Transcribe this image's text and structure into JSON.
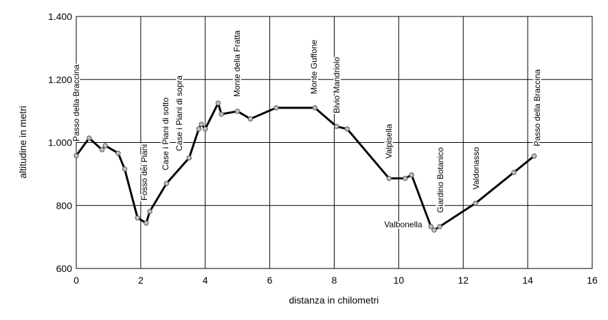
{
  "chart_data": {
    "type": "line",
    "x_label": "distanza in chilometri",
    "y_label": "altitudine in metri",
    "x": [
      0,
      0.4,
      0.8,
      0.9,
      1.3,
      1.5,
      1.9,
      2.17,
      2.28,
      2.8,
      3.5,
      3.8,
      3.88,
      4.0,
      4.4,
      4.5,
      5.0,
      5.4,
      6.2,
      7.4,
      8.07,
      8.4,
      9.7,
      10.2,
      10.4,
      11.0,
      11.1,
      11.27,
      12.38,
      13.57,
      14.2
    ],
    "series": [
      {
        "color": "#000000",
        "marker_color": "#c0c0c0",
        "values": [
          958,
          1014,
          977,
          990,
          966,
          916,
          761,
          744,
          781,
          870,
          951,
          1043,
          1058,
          1043,
          1125,
          1090,
          1099,
          1075,
          1110,
          1110,
          1051,
          1043,
          886,
          886,
          897,
          733,
          722,
          733,
          807,
          905,
          957
        ]
      }
    ],
    "xlim": [
      0,
      16
    ],
    "xticks": [
      0,
      2,
      4,
      6,
      8,
      10,
      12,
      14,
      16
    ],
    "ylim": [
      600,
      1400
    ],
    "yticks": [
      600,
      800,
      {
        "value": 1000,
        "label": "1.000"
      },
      {
        "value": 1200,
        "label": "1.200"
      },
      {
        "value": 1400,
        "label": "1.400"
      }
    ],
    "grid": true,
    "annotations": [
      "Passo della Braccina",
      "Fosso dei Piani",
      "Case i Piani di sotto",
      "Case i Piani di sopra",
      "Monte della Fratta",
      "Monte Guffone",
      "Bivio Mandriolo",
      "Valpisella",
      "Valbonella",
      "Giardino Botanico",
      "Valdonasso",
      "Passo della Braccina"
    ]
  }
}
